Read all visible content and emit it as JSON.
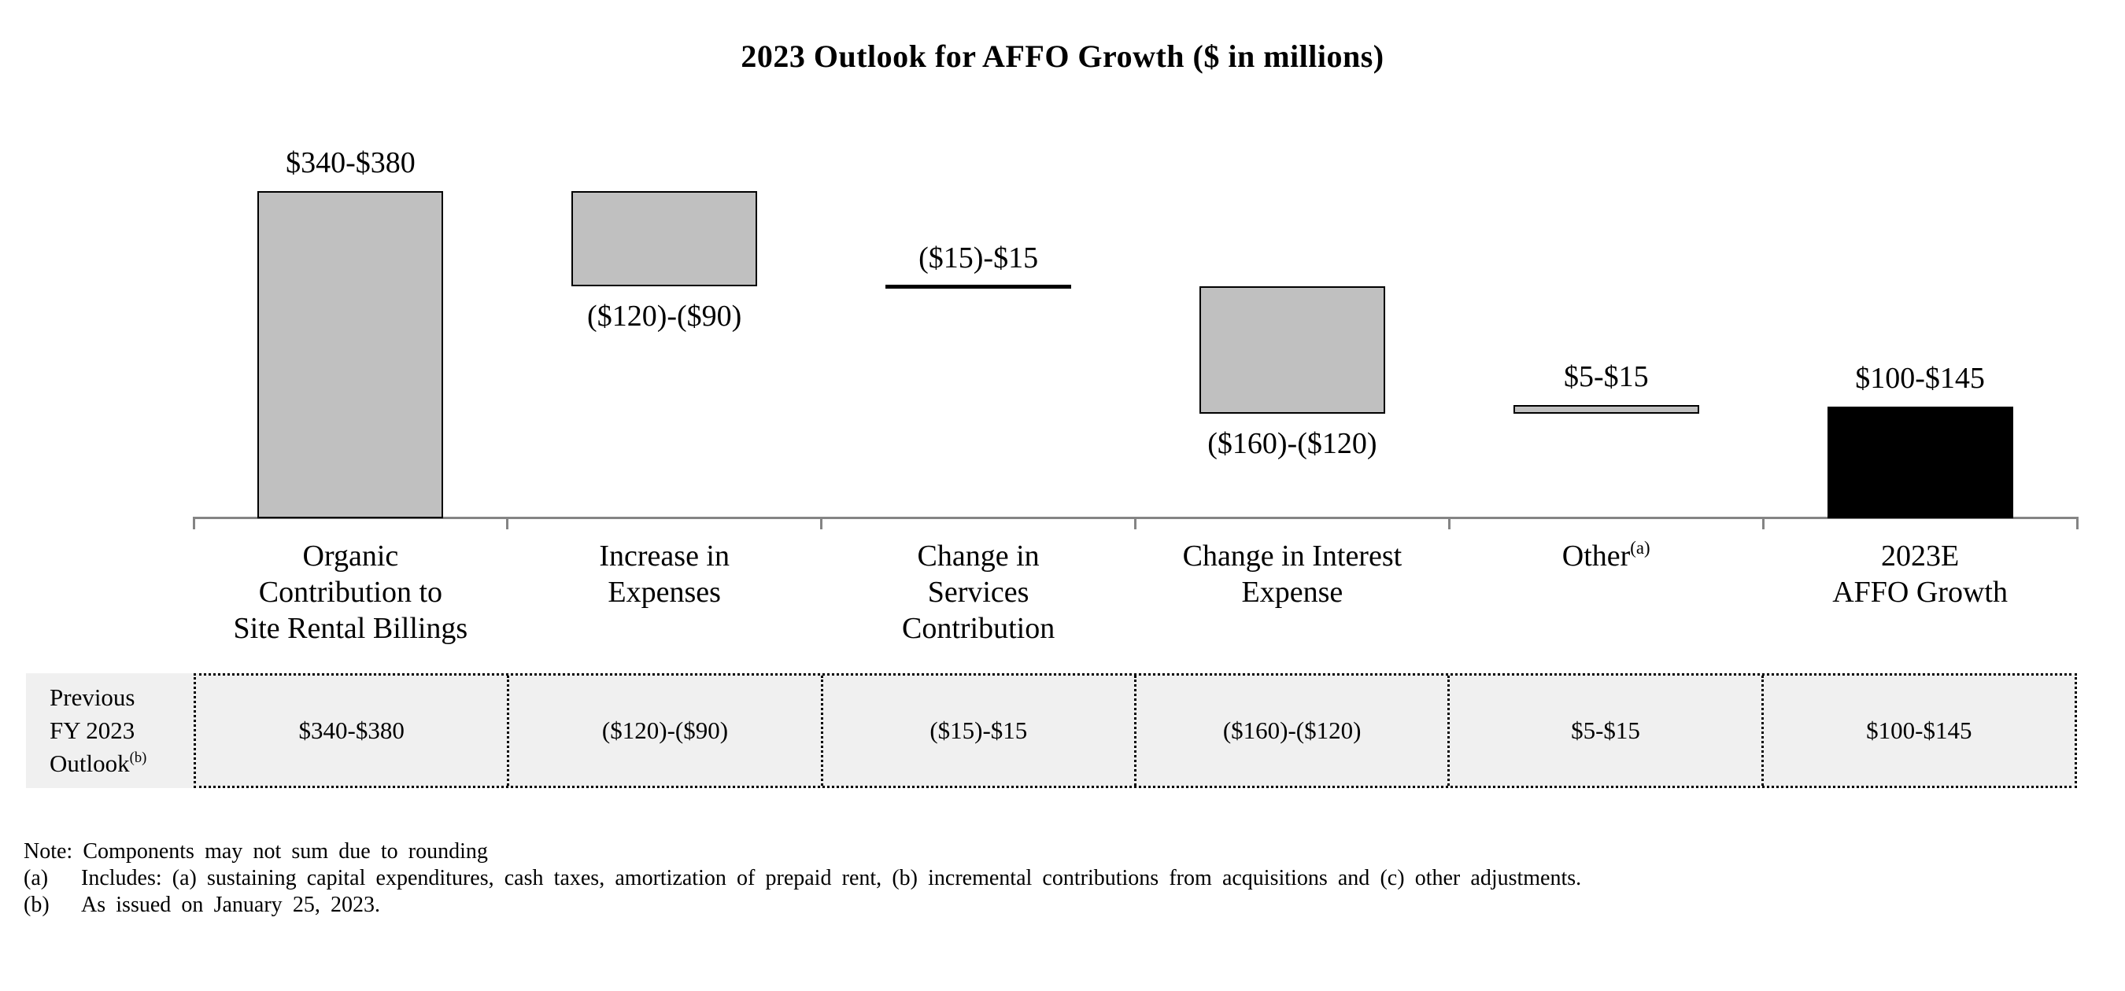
{
  "chart_data": {
    "type": "bar",
    "subtype": "waterfall",
    "title": "2023 Outlook for AFFO Growth ($ in millions)",
    "unit": "$ in millions",
    "grid": false,
    "legend": false,
    "y_axis_visible": false,
    "ylim": [
      0,
      400
    ],
    "colors": {
      "bar_fill": "#c0c0c0",
      "bar_border": "#000000",
      "total_bar_fill": "#000000",
      "axis_line": "#848484",
      "table_bg": "#f0f0f0"
    },
    "categories": [
      {
        "lines": [
          "Organic",
          "Contribution to",
          "Site Rental Billings"
        ],
        "sup": ""
      },
      {
        "lines": [
          "Increase in",
          "Expenses"
        ],
        "sup": ""
      },
      {
        "lines": [
          "Change in",
          "Services",
          "Contribution"
        ],
        "sup": ""
      },
      {
        "lines": [
          "Change in Interest",
          "Expense"
        ],
        "sup": ""
      },
      {
        "lines": [
          "Other"
        ],
        "sup": "(a)"
      },
      {
        "lines": [
          "2023E",
          "AFFO Growth"
        ],
        "sup": ""
      }
    ],
    "series": [
      {
        "name": "Organic Contribution to Site Rental Billings",
        "range_label": "$340-$380",
        "range": [
          340,
          380
        ],
        "start": 0,
        "end": 360,
        "bar": "gray",
        "label_pos": "above"
      },
      {
        "name": "Increase in Expenses",
        "range_label": "($120)-($90)",
        "range": [
          -120,
          -90
        ],
        "start": 360,
        "end": 255,
        "bar": "gray",
        "label_pos": "below"
      },
      {
        "name": "Change in Services Contribution",
        "range_label": "($15)-$15",
        "range": [
          -15,
          15
        ],
        "start": 255,
        "end": 255,
        "bar": "line",
        "label_pos": "above"
      },
      {
        "name": "Change in Interest Expense",
        "range_label": "($160)-($120)",
        "range": [
          -160,
          -120
        ],
        "start": 255,
        "end": 115,
        "bar": "gray",
        "label_pos": "below"
      },
      {
        "name": "Other",
        "range_label": "$5-$15",
        "range": [
          5,
          15
        ],
        "start": 115,
        "end": 125,
        "bar": "gray",
        "label_pos": "above"
      },
      {
        "name": "2023E AFFO Growth",
        "range_label": "$100-$145",
        "range": [
          100,
          145
        ],
        "start": 0,
        "end": 122.5,
        "bar": "black",
        "label_pos": "above"
      }
    ]
  },
  "table": {
    "row_label_lines": [
      "Previous",
      "FY 2023",
      "Outlook"
    ],
    "row_label_superscript": "(b)",
    "values": [
      "$340-$380",
      "($120)-($90)",
      "($15)-$15",
      "($160)-($120)",
      "$5-$15",
      "$100-$145"
    ]
  },
  "footnotes": {
    "note": "Note: Components may not sum due to rounding",
    "items": [
      {
        "marker": "(a)",
        "text": "Includes: (a) sustaining capital expenditures, cash taxes, amortization of prepaid rent, (b) incremental contributions from acquisitions and (c) other adjustments."
      },
      {
        "marker": "(b)",
        "text": "As issued on January 25, 2023."
      }
    ]
  }
}
